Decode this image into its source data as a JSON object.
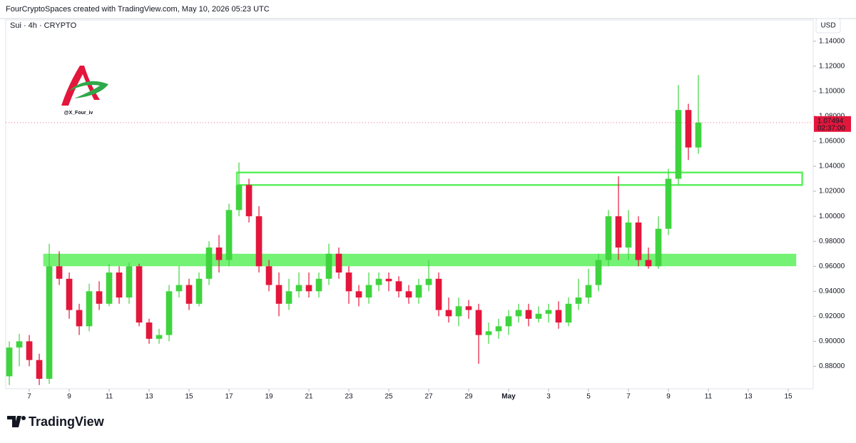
{
  "header": {
    "credit": "FourCryptoSpaces created with TradingView.com, May 10, 2026 05:23 UTC"
  },
  "watermark": {
    "handle": "@X_Four_iv"
  },
  "footer": {
    "brand": "TradingView"
  },
  "chart_data": {
    "type": "candlestick",
    "title": "Sui · 4h · CRYPTO",
    "currency": "USD",
    "up_color": "#3fd43f",
    "down_color": "#e3163c",
    "zone_color": "#5cf05c",
    "last_price": 1.07494,
    "countdown": "02:37:00",
    "x": [
      6.0,
      6.5,
      7.0,
      7.5,
      8.0,
      8.5,
      9.0,
      9.5,
      10.0,
      10.5,
      11.0,
      11.5,
      12.0,
      12.5,
      13.0,
      13.5,
      14.0,
      14.5,
      15.0,
      15.5,
      16.0,
      16.5,
      17.0,
      17.5,
      18.0,
      18.5,
      19.0,
      19.5,
      20.0,
      20.5,
      21.0,
      21.5,
      22.0,
      22.5,
      23.0,
      23.5,
      24.0,
      24.5,
      25.0,
      25.5,
      26.0,
      26.5,
      27.0,
      27.5,
      28.0,
      28.5,
      29.0,
      29.5,
      30.0,
      30.5,
      31.0,
      31.5,
      32.0,
      32.5,
      33.0,
      33.5,
      34.0,
      34.5,
      35.0,
      35.5,
      36.0,
      36.5,
      37.0,
      37.5,
      38.0,
      38.5,
      39.0,
      39.5,
      40.0,
      40.5
    ],
    "open": [
      0.872,
      0.895,
      0.9,
      0.885,
      0.87,
      0.96,
      0.95,
      0.925,
      0.912,
      0.94,
      0.93,
      0.955,
      0.935,
      0.96,
      0.915,
      0.902,
      0.905,
      0.94,
      0.945,
      0.93,
      0.95,
      0.975,
      0.965,
      1.005,
      1.025,
      1.0,
      0.96,
      0.945,
      0.93,
      0.94,
      0.945,
      0.94,
      0.95,
      0.97,
      0.955,
      0.94,
      0.935,
      0.945,
      0.95,
      0.948,
      0.94,
      0.935,
      0.945,
      0.95,
      0.925,
      0.92,
      0.928,
      0.925,
      0.905,
      0.908,
      0.912,
      0.92,
      0.925,
      0.918,
      0.922,
      0.925,
      0.915,
      0.93,
      0.935,
      0.945,
      0.965,
      1.0,
      0.975,
      0.995,
      0.965,
      0.96,
      0.99,
      1.03,
      1.085,
      1.055
    ],
    "high": [
      0.9,
      0.906,
      0.905,
      0.89,
      0.978,
      0.972,
      0.955,
      0.93,
      0.946,
      0.948,
      0.962,
      0.96,
      0.963,
      0.962,
      0.918,
      0.91,
      0.945,
      0.96,
      0.95,
      0.955,
      0.98,
      0.985,
      1.01,
      1.043,
      1.03,
      1.008,
      0.965,
      0.955,
      0.95,
      0.955,
      0.955,
      0.955,
      0.978,
      0.975,
      0.96,
      0.945,
      0.955,
      0.955,
      0.955,
      0.952,
      0.945,
      0.95,
      0.965,
      0.955,
      0.935,
      0.935,
      0.933,
      0.93,
      0.915,
      0.918,
      0.925,
      0.93,
      0.93,
      0.928,
      0.93,
      0.932,
      0.935,
      0.95,
      0.958,
      0.97,
      1.005,
      1.032,
      1.005,
      1.0,
      0.975,
      1.0,
      1.038,
      1.105,
      1.09,
      1.113
    ],
    "low": [
      0.865,
      0.88,
      0.88,
      0.865,
      0.866,
      0.945,
      0.918,
      0.905,
      0.908,
      0.925,
      0.928,
      0.93,
      0.93,
      0.912,
      0.898,
      0.898,
      0.9,
      0.935,
      0.925,
      0.928,
      0.945,
      0.955,
      0.96,
      1.0,
      0.995,
      0.955,
      0.94,
      0.92,
      0.925,
      0.935,
      0.935,
      0.935,
      0.945,
      0.95,
      0.93,
      0.928,
      0.93,
      0.94,
      0.94,
      0.935,
      0.93,
      0.93,
      0.94,
      0.92,
      0.915,
      0.912,
      0.918,
      0.882,
      0.898,
      0.902,
      0.905,
      0.915,
      0.912,
      0.915,
      0.915,
      0.91,
      0.912,
      0.925,
      0.93,
      0.94,
      0.96,
      0.965,
      0.965,
      0.96,
      0.958,
      0.958,
      0.985,
      1.025,
      1.045,
      1.05
    ],
    "close": [
      0.895,
      0.9,
      0.885,
      0.87,
      0.96,
      0.95,
      0.925,
      0.912,
      0.94,
      0.93,
      0.955,
      0.935,
      0.96,
      0.915,
      0.902,
      0.905,
      0.94,
      0.945,
      0.93,
      0.95,
      0.975,
      0.965,
      1.005,
      1.025,
      1.0,
      0.96,
      0.945,
      0.93,
      0.94,
      0.945,
      0.94,
      0.95,
      0.97,
      0.955,
      0.94,
      0.935,
      0.945,
      0.95,
      0.948,
      0.94,
      0.935,
      0.945,
      0.95,
      0.925,
      0.92,
      0.928,
      0.925,
      0.905,
      0.908,
      0.912,
      0.92,
      0.925,
      0.918,
      0.922,
      0.925,
      0.915,
      0.93,
      0.935,
      0.945,
      0.965,
      1.0,
      0.975,
      0.995,
      0.965,
      0.96,
      0.99,
      1.03,
      1.085,
      1.055,
      1.07494
    ],
    "zones": [
      {
        "style": "filled",
        "xlim": [
          7.7,
          45.4
        ],
        "ylim": [
          0.96,
          0.97
        ]
      },
      {
        "style": "outline",
        "xlim": [
          17.4,
          45.7
        ],
        "ylim": [
          1.025,
          1.035
        ]
      }
    ],
    "xlim": [
      5.82,
      46.25
    ],
    "xticks": [
      7,
      9,
      11,
      13,
      15,
      17,
      19,
      21,
      23,
      25,
      27,
      29,
      {
        "value": 31,
        "label": "May"
      },
      {
        "value": 33,
        "label": "3"
      },
      {
        "value": 35,
        "label": "5"
      },
      {
        "value": 37,
        "label": "7"
      },
      {
        "value": 39,
        "label": "9"
      },
      {
        "value": 41,
        "label": "11"
      },
      {
        "value": 43,
        "label": "13"
      },
      {
        "value": 45,
        "label": "15"
      }
    ],
    "ylim": [
      0.862,
      1.157
    ],
    "yticks": [
      {
        "value": 0.88,
        "label": "0.88000"
      },
      {
        "value": 0.9,
        "label": "0.90000"
      },
      {
        "value": 0.92,
        "label": "0.92000"
      },
      {
        "value": 0.94,
        "label": "0.94000"
      },
      {
        "value": 0.96,
        "label": "0.96000"
      },
      {
        "value": 0.98,
        "label": "0.98000"
      },
      {
        "value": 1.0,
        "label": "1.00000"
      },
      {
        "value": 1.02,
        "label": "1.02000"
      },
      {
        "value": 1.04,
        "label": "1.04000"
      },
      {
        "value": 1.06,
        "label": "1.06000"
      },
      {
        "value": 1.08,
        "label": "1.08000"
      },
      {
        "value": 1.1,
        "label": "1.10000"
      },
      {
        "value": 1.12,
        "label": "1.12000"
      },
      {
        "value": 1.14,
        "label": "1.14000"
      }
    ]
  }
}
